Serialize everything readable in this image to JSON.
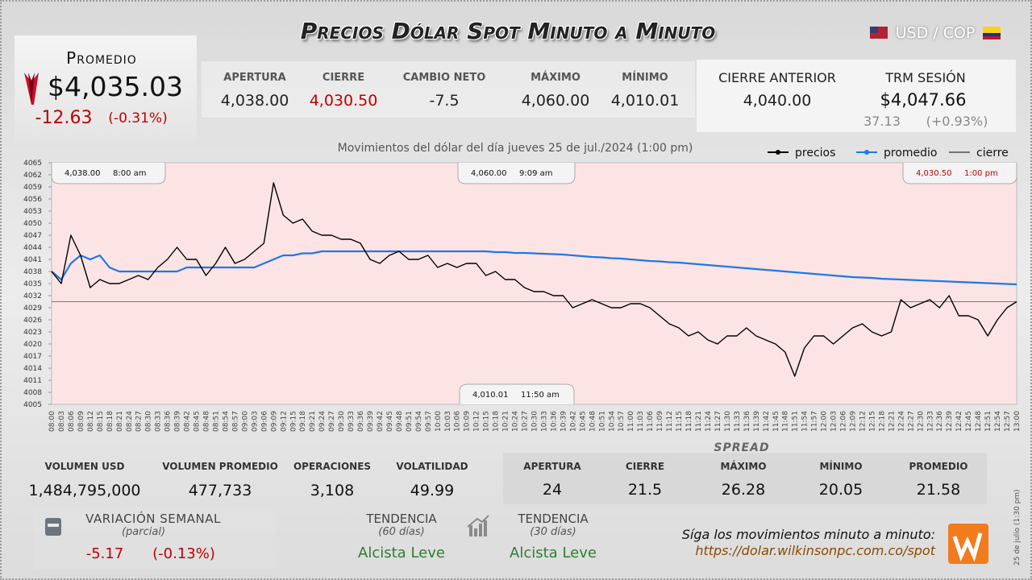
{
  "header": {
    "title": "Precios Dólar Spot Minuto a Minuto",
    "pair": "USD / COP"
  },
  "promedio": {
    "label": "Promedio",
    "value": "$4,035.03",
    "change": "-12.63",
    "change_pct": "(-0.31%)"
  },
  "session_stats": [
    {
      "label": "APERTURA",
      "value": "4,038.00"
    },
    {
      "label": "CIERRE",
      "value": "4,030.50"
    },
    {
      "label": "CAMBIO NETO",
      "value": "-7.5"
    },
    {
      "label": "MÁXIMO",
      "value": "4,060.00"
    },
    {
      "label": "MÍNIMO",
      "value": "4,010.01"
    }
  ],
  "previous_close": {
    "label": "CIERRE ANTERIOR",
    "value": "4,040.00"
  },
  "trm": {
    "label": "TRM SESIÓN",
    "value": "$4,047.66",
    "change": "37.13",
    "change_pct": "(+0.93%)"
  },
  "chart_data": {
    "type": "line",
    "title": "Movimientos del dólar del día jueves 25 de jul./2024 (1:00 pm)",
    "categories": [
      "08:00",
      "08:03",
      "08:06",
      "08:09",
      "08:12",
      "08:15",
      "08:18",
      "08:21",
      "08:24",
      "08:27",
      "08:30",
      "08:33",
      "08:36",
      "08:39",
      "08:42",
      "08:45",
      "08:48",
      "08:51",
      "08:54",
      "08:57",
      "09:00",
      "09:03",
      "09:06",
      "09:09",
      "09:12",
      "09:15",
      "09:18",
      "09:21",
      "09:24",
      "09:27",
      "09:30",
      "09:33",
      "09:36",
      "09:39",
      "09:42",
      "09:45",
      "09:48",
      "09:51",
      "09:54",
      "09:57",
      "10:00",
      "10:03",
      "10:06",
      "10:09",
      "10:12",
      "10:15",
      "10:18",
      "10:21",
      "10:24",
      "10:27",
      "10:30",
      "10:33",
      "10:36",
      "10:39",
      "10:42",
      "10:45",
      "10:48",
      "10:51",
      "10:54",
      "10:57",
      "11:00",
      "11:03",
      "11:06",
      "11:09",
      "11:12",
      "11:15",
      "11:18",
      "11:21",
      "11:24",
      "11:27",
      "11:30",
      "11:33",
      "11:36",
      "11:39",
      "11:42",
      "11:45",
      "11:48",
      "11:51",
      "11:54",
      "11:57",
      "12:00",
      "12:03",
      "12:06",
      "12:09",
      "12:12",
      "12:15",
      "12:18",
      "12:21",
      "12:24",
      "12:27",
      "12:30",
      "12:33",
      "12:36",
      "12:39",
      "12:42",
      "12:45",
      "12:48",
      "12:51",
      "12:54",
      "12:57",
      "13:00"
    ],
    "series": [
      {
        "name": "precios",
        "color": "#000000",
        "values": [
          4038,
          4035,
          4047,
          4042,
          4034,
          4036,
          4035,
          4035,
          4036,
          4037,
          4036,
          4039,
          4041,
          4044,
          4041,
          4041,
          4037,
          4040,
          4044,
          4040,
          4041,
          4043,
          4045,
          4060,
          4052,
          4050,
          4051,
          4048,
          4047,
          4047,
          4046,
          4046,
          4045,
          4041,
          4040,
          4042,
          4043,
          4041,
          4041,
          4042,
          4039,
          4040,
          4039,
          4040,
          4040,
          4037,
          4038,
          4036,
          4036,
          4034,
          4033,
          4033,
          4032,
          4032,
          4029,
          4030,
          4031,
          4030,
          4029,
          4029,
          4030,
          4030,
          4029,
          4027,
          4025,
          4024,
          4022,
          4023,
          4021,
          4020,
          4022,
          4022,
          4024,
          4022,
          4021,
          4020,
          4018,
          4012,
          4019,
          4022,
          4022,
          4020,
          4022,
          4024,
          4025,
          4023,
          4022,
          4023,
          4031,
          4029,
          4030,
          4031,
          4029,
          4032,
          4027,
          4027,
          4026,
          4022,
          4026,
          4029,
          4030.5
        ]
      },
      {
        "name": "promedio",
        "color": "#1e78e6",
        "values": [
          4038,
          4036,
          4040,
          4042,
          4041,
          4042,
          4039,
          4038,
          4038,
          4038,
          4038,
          4038,
          4038,
          4038,
          4039,
          4039,
          4039,
          4039,
          4039,
          4039,
          4039,
          4039,
          4040,
          4041,
          4042,
          4042,
          4042.5,
          4042.5,
          4043,
          4043,
          4043,
          4043,
          4043,
          4043,
          4043,
          4043,
          4043,
          4043,
          4043,
          4043,
          4043,
          4043,
          4043,
          4043,
          4043,
          4043,
          4042.8,
          4042.8,
          4042.6,
          4042.6,
          4042.5,
          4042.4,
          4042.3,
          4042.2,
          4042,
          4041.8,
          4041.6,
          4041.5,
          4041.3,
          4041.2,
          4041,
          4040.8,
          4040.6,
          4040.5,
          4040.3,
          4040.2,
          4040,
          4039.8,
          4039.6,
          4039.4,
          4039.2,
          4039,
          4038.8,
          4038.6,
          4038.4,
          4038.2,
          4038,
          4037.8,
          4037.6,
          4037.4,
          4037.2,
          4037,
          4036.8,
          4036.6,
          4036.5,
          4036.4,
          4036.2,
          4036.1,
          4036,
          4035.9,
          4035.8,
          4035.7,
          4035.6,
          4035.5,
          4035.4,
          4035.3,
          4035.2,
          4035.1,
          4035,
          4034.9,
          4034.8
        ]
      }
    ],
    "reference_lines": [
      {
        "name": "cierre",
        "value": 4030.5,
        "color": "#555555"
      }
    ],
    "ylim": [
      4005,
      4065
    ],
    "yticks": [
      4005,
      4008,
      4011,
      4014,
      4017,
      4020,
      4023,
      4026,
      4029,
      4032,
      4035,
      4038,
      4041,
      4044,
      4047,
      4050,
      4053,
      4056,
      4059,
      4062,
      4065
    ],
    "annotations": [
      {
        "value": "4,038.00",
        "time": "8:00 am"
      },
      {
        "value": "4,060.00",
        "time": "9:09 am"
      },
      {
        "value": "4,030.50",
        "time": "1:00 pm"
      },
      {
        "value": "4,010.01",
        "time": "11:50 am"
      }
    ]
  },
  "volume_stats": [
    {
      "label": "VOLUMEN USD",
      "value": "1,484,795,000"
    },
    {
      "label": "VOLUMEN PROMEDIO",
      "value": "477,733"
    },
    {
      "label": "OPERACIONES",
      "value": "3,108"
    },
    {
      "label": "VOLATILIDAD",
      "value": "49.99"
    }
  ],
  "spread": {
    "title": "SPREAD",
    "stats": [
      {
        "label": "APERTURA",
        "value": "24"
      },
      {
        "label": "CIERRE",
        "value": "21.5"
      },
      {
        "label": "MÁXIMO",
        "value": "26.28"
      },
      {
        "label": "MÍNIMO",
        "value": "20.05"
      },
      {
        "label": "PROMEDIO",
        "value": "21.58"
      }
    ]
  },
  "weekly_variation": {
    "label": "VARIACIÓN SEMANAL",
    "note": "(parcial)",
    "change": "-5.17",
    "change_pct": "(-0.13%)"
  },
  "trends": [
    {
      "label": "TENDENCIA",
      "note": "(60 días)",
      "value": "Alcista Leve"
    },
    {
      "label": "TENDENCIA",
      "note": "(30 días)",
      "value": "Alcista Leve"
    }
  ],
  "footer": {
    "prompt": "Síga los movimientos minuto a minuto:",
    "url": "https://dolar.wilkinsonpc.com.co/spot",
    "timestamp": "25 de julio (1:30 pm)"
  }
}
